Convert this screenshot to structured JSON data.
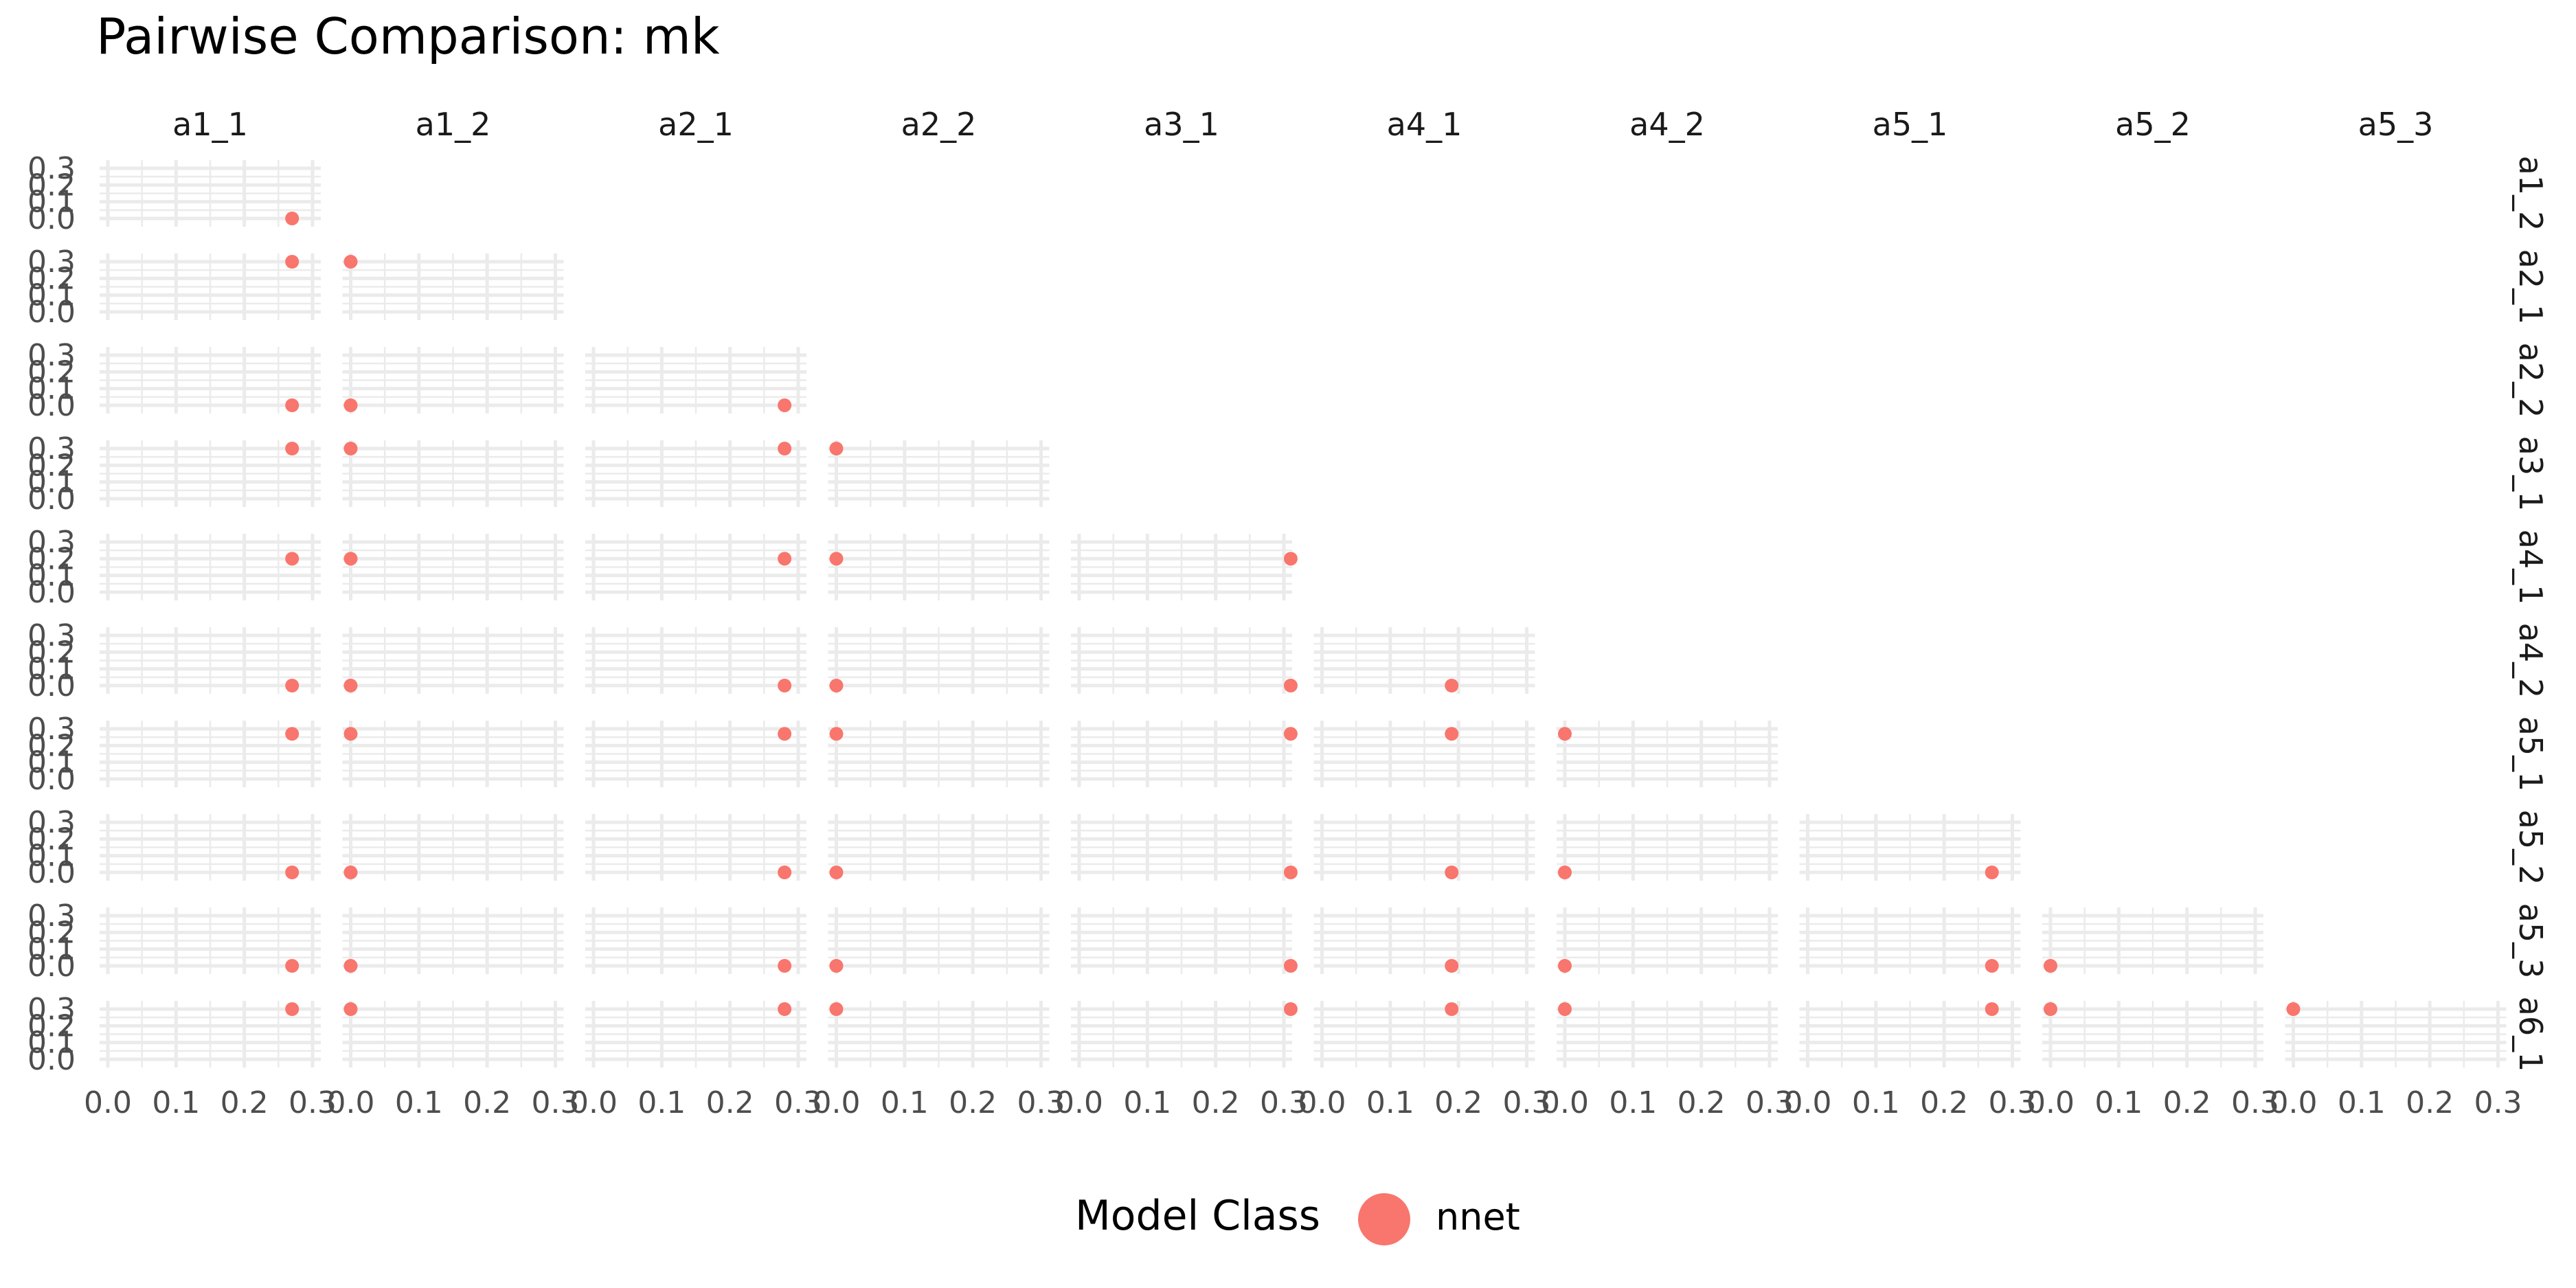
{
  "chart_data": {
    "type": "scatter",
    "title": "Pairwise Comparison: mk",
    "columns": [
      "a1_1",
      "a1_2",
      "a2_1",
      "a2_2",
      "a3_1",
      "a4_1",
      "a4_2",
      "a5_1",
      "a5_2",
      "a5_3"
    ],
    "rows": [
      "a1_2",
      "a2_1",
      "a2_2",
      "a3_1",
      "a4_1",
      "a4_2",
      "a5_1",
      "a5_2",
      "a5_3",
      "a6_1"
    ],
    "x_ticks": [
      "0.0",
      "0.1",
      "0.2",
      "0.3"
    ],
    "y_ticks": [
      "0.0",
      "0.1",
      "0.2",
      "0.3"
    ],
    "xlim": [
      0,
      0.3
    ],
    "ylim": [
      0,
      0.3
    ],
    "grid": true,
    "legend": {
      "title": "Model Class",
      "placement": "bottom",
      "entries": [
        "nnet"
      ]
    },
    "colors": {
      "nnet": "#f8766d",
      "grid": "#ebebeb"
    },
    "series": [
      {
        "name": "nnet",
        "points": [
          {
            "col": "a1_1",
            "row": "a1_2",
            "x": 0.27,
            "y": 0.0
          },
          {
            "col": "a1_1",
            "row": "a2_1",
            "x": 0.27,
            "y": 0.3
          },
          {
            "col": "a1_2",
            "row": "a2_1",
            "x": 0.0,
            "y": 0.3
          },
          {
            "col": "a1_1",
            "row": "a2_2",
            "x": 0.27,
            "y": 0.0
          },
          {
            "col": "a1_2",
            "row": "a2_2",
            "x": 0.0,
            "y": 0.0
          },
          {
            "col": "a2_1",
            "row": "a2_2",
            "x": 0.28,
            "y": 0.0
          },
          {
            "col": "a1_1",
            "row": "a3_1",
            "x": 0.27,
            "y": 0.3
          },
          {
            "col": "a1_2",
            "row": "a3_1",
            "x": 0.0,
            "y": 0.3
          },
          {
            "col": "a2_1",
            "row": "a3_1",
            "x": 0.28,
            "y": 0.3
          },
          {
            "col": "a2_2",
            "row": "a3_1",
            "x": 0.0,
            "y": 0.3
          },
          {
            "col": "a1_1",
            "row": "a4_1",
            "x": 0.27,
            "y": 0.2
          },
          {
            "col": "a1_2",
            "row": "a4_1",
            "x": 0.0,
            "y": 0.2
          },
          {
            "col": "a2_1",
            "row": "a4_1",
            "x": 0.28,
            "y": 0.2
          },
          {
            "col": "a2_2",
            "row": "a4_1",
            "x": 0.0,
            "y": 0.2
          },
          {
            "col": "a3_1",
            "row": "a4_1",
            "x": 0.31,
            "y": 0.2
          },
          {
            "col": "a1_1",
            "row": "a4_2",
            "x": 0.27,
            "y": 0.0
          },
          {
            "col": "a1_2",
            "row": "a4_2",
            "x": 0.0,
            "y": 0.0
          },
          {
            "col": "a2_1",
            "row": "a4_2",
            "x": 0.28,
            "y": 0.0
          },
          {
            "col": "a2_2",
            "row": "a4_2",
            "x": 0.0,
            "y": 0.0
          },
          {
            "col": "a3_1",
            "row": "a4_2",
            "x": 0.31,
            "y": 0.0
          },
          {
            "col": "a4_1",
            "row": "a4_2",
            "x": 0.19,
            "y": 0.0
          },
          {
            "col": "a1_1",
            "row": "a5_1",
            "x": 0.27,
            "y": 0.27
          },
          {
            "col": "a1_2",
            "row": "a5_1",
            "x": 0.0,
            "y": 0.27
          },
          {
            "col": "a2_1",
            "row": "a5_1",
            "x": 0.28,
            "y": 0.27
          },
          {
            "col": "a2_2",
            "row": "a5_1",
            "x": 0.0,
            "y": 0.27
          },
          {
            "col": "a3_1",
            "row": "a5_1",
            "x": 0.31,
            "y": 0.27
          },
          {
            "col": "a4_1",
            "row": "a5_1",
            "x": 0.19,
            "y": 0.27
          },
          {
            "col": "a4_2",
            "row": "a5_1",
            "x": 0.0,
            "y": 0.27
          },
          {
            "col": "a1_1",
            "row": "a5_2",
            "x": 0.27,
            "y": 0.0
          },
          {
            "col": "a1_2",
            "row": "a5_2",
            "x": 0.0,
            "y": 0.0
          },
          {
            "col": "a2_1",
            "row": "a5_2",
            "x": 0.28,
            "y": 0.0
          },
          {
            "col": "a2_2",
            "row": "a5_2",
            "x": 0.0,
            "y": 0.0
          },
          {
            "col": "a3_1",
            "row": "a5_2",
            "x": 0.31,
            "y": 0.0
          },
          {
            "col": "a4_1",
            "row": "a5_2",
            "x": 0.19,
            "y": 0.0
          },
          {
            "col": "a4_2",
            "row": "a5_2",
            "x": 0.0,
            "y": 0.0
          },
          {
            "col": "a5_1",
            "row": "a5_2",
            "x": 0.27,
            "y": 0.0
          },
          {
            "col": "a1_1",
            "row": "a5_3",
            "x": 0.27,
            "y": 0.0
          },
          {
            "col": "a1_2",
            "row": "a5_3",
            "x": 0.0,
            "y": 0.0
          },
          {
            "col": "a2_1",
            "row": "a5_3",
            "x": 0.28,
            "y": 0.0
          },
          {
            "col": "a2_2",
            "row": "a5_3",
            "x": 0.0,
            "y": 0.0
          },
          {
            "col": "a3_1",
            "row": "a5_3",
            "x": 0.31,
            "y": 0.0
          },
          {
            "col": "a4_1",
            "row": "a5_3",
            "x": 0.19,
            "y": 0.0
          },
          {
            "col": "a4_2",
            "row": "a5_3",
            "x": 0.0,
            "y": 0.0
          },
          {
            "col": "a5_1",
            "row": "a5_3",
            "x": 0.27,
            "y": 0.0
          },
          {
            "col": "a5_2",
            "row": "a5_3",
            "x": 0.0,
            "y": 0.0
          },
          {
            "col": "a1_1",
            "row": "a6_1",
            "x": 0.27,
            "y": 0.3
          },
          {
            "col": "a1_2",
            "row": "a6_1",
            "x": 0.0,
            "y": 0.3
          },
          {
            "col": "a2_1",
            "row": "a6_1",
            "x": 0.28,
            "y": 0.3
          },
          {
            "col": "a2_2",
            "row": "a6_1",
            "x": 0.0,
            "y": 0.3
          },
          {
            "col": "a3_1",
            "row": "a6_1",
            "x": 0.31,
            "y": 0.3
          },
          {
            "col": "a4_1",
            "row": "a6_1",
            "x": 0.19,
            "y": 0.3
          },
          {
            "col": "a4_2",
            "row": "a6_1",
            "x": 0.0,
            "y": 0.3
          },
          {
            "col": "a5_1",
            "row": "a6_1",
            "x": 0.27,
            "y": 0.3
          },
          {
            "col": "a5_2",
            "row": "a6_1",
            "x": 0.0,
            "y": 0.3
          },
          {
            "col": "a5_3",
            "row": "a6_1",
            "x": 0.0,
            "y": 0.3
          }
        ]
      }
    ]
  }
}
